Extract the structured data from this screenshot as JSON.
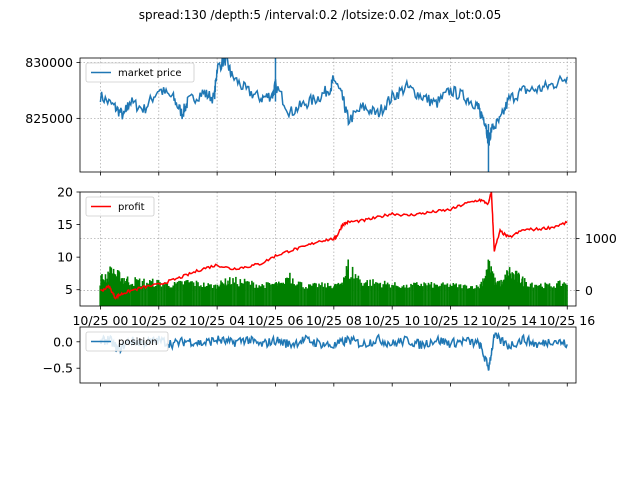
{
  "figure": {
    "title": "spread:130 /depth:5 /interval:0.2 /lotsize:0.02 /max_lot:0.05"
  },
  "colors": {
    "market_price": "#1f77b4",
    "profit": "#ff0000",
    "volume": "#008000",
    "position": "#1f77b4"
  },
  "chart_data": [
    {
      "type": "line",
      "panel": "top",
      "legend": {
        "labels": [
          "market price"
        ],
        "placement": "upper-left"
      },
      "grid": true,
      "ylim": [
        820200,
        830400
      ],
      "yticks": [
        825000,
        830000
      ],
      "ytick_labels": [
        "825000",
        "830000"
      ],
      "x_range_hours": [
        -0.7,
        16.3
      ],
      "series": [
        {
          "name": "market price",
          "x": [
            0,
            0.5,
            0.8,
            1,
            1.5,
            2,
            2.5,
            2.8,
            3,
            3.5,
            3.9,
            4,
            4.3,
            4.5,
            5,
            5.5,
            5.9,
            6,
            6.5,
            7,
            7.5,
            7.9,
            8,
            8.3,
            8.5,
            9,
            9.5,
            10,
            10.5,
            11,
            11.5,
            12,
            12.5,
            12.9,
            13,
            13.2,
            13.3,
            13.4,
            13.7,
            14,
            14.5,
            15,
            15.5,
            16
          ],
          "y": [
            827000,
            826000,
            825200,
            826500,
            825800,
            827600,
            826800,
            825400,
            826500,
            827300,
            826800,
            829500,
            830300,
            828800,
            827500,
            826800,
            827100,
            828000,
            825500,
            826300,
            826900,
            827800,
            828600,
            826800,
            824800,
            826000,
            825400,
            826900,
            827800,
            827000,
            826300,
            827500,
            826900,
            826200,
            825600,
            824700,
            822800,
            824000,
            824800,
            826700,
            827500,
            827600,
            828000,
            828700
          ]
        }
      ]
    },
    {
      "type": "line",
      "panel": "middle",
      "legend": {
        "labels": [
          "profit"
        ],
        "placement": "upper-left"
      },
      "grid": true,
      "ylim": [
        2.5,
        20
      ],
      "yticks": [
        5,
        10,
        15,
        20
      ],
      "ytick_labels": [
        "5",
        "10",
        "15",
        "20"
      ],
      "xticks": [
        0,
        2,
        4,
        6,
        8,
        10,
        12,
        14,
        16
      ],
      "xtick_labels": [
        "10/25 00",
        "10/25 02",
        "10/25 04",
        "10/25 06",
        "10/25 08",
        "10/25 10",
        "10/25 12",
        "10/25 14",
        "10/25 16"
      ],
      "series": [
        {
          "name": "profit",
          "x": [
            0,
            0.3,
            0.5,
            0.7,
            1,
            1.5,
            2,
            2.5,
            3,
            3.5,
            4,
            4.5,
            5,
            5.5,
            6,
            6.5,
            7,
            7.5,
            8,
            8.1,
            8.3,
            8.5,
            9,
            9.5,
            10,
            10.5,
            11,
            11.5,
            12,
            12.5,
            13,
            13.3,
            13.4,
            13.5,
            13.7,
            14,
            14.5,
            15,
            15.5,
            16
          ],
          "y": [
            4.8,
            5.5,
            3.8,
            4.3,
            4.8,
            5.4,
            5.8,
            6.5,
            7.3,
            8.2,
            8.8,
            8.2,
            8.5,
            9.0,
            10.2,
            11.0,
            11.6,
            12.5,
            12.8,
            13.2,
            15.0,
            15.4,
            15.6,
            16.1,
            16.7,
            16.4,
            16.7,
            17.0,
            17.3,
            18.2,
            18.8,
            18.2,
            20.0,
            11.0,
            14.0,
            13.0,
            14.2,
            14.3,
            14.6,
            15.3
          ]
        }
      ],
      "secondary_axis": {
        "type": "bar",
        "label_side": "right",
        "ylim": [
          -300,
          1900
        ],
        "yticks": [
          0,
          1000
        ],
        "ytick_labels": [
          "0",
          "1000"
        ],
        "series": [
          {
            "name": "volume",
            "x": [
              0,
              0.3,
              0.5,
              0.7,
              1,
              1.5,
              2,
              2.5,
              3,
              3.5,
              4,
              4.2,
              4.5,
              5,
              5.5,
              6,
              6.3,
              6.5,
              7,
              7.5,
              8,
              8.2,
              8.5,
              9,
              9.5,
              10,
              10.5,
              11,
              11.5,
              12,
              12.5,
              13,
              13.3,
              13.5,
              13.8,
              14,
              14.3,
              14.5,
              15,
              15.5,
              16
            ],
            "values": [
              250,
              400,
              350,
              300,
              230,
              200,
              180,
              130,
              200,
              140,
              100,
              180,
              220,
              190,
              120,
              150,
              130,
              360,
              90,
              130,
              110,
              120,
              520,
              200,
              180,
              140,
              90,
              160,
              120,
              130,
              100,
              90,
              550,
              240,
              160,
              430,
              300,
              220,
              140,
              110,
              200
            ]
          }
        ]
      }
    },
    {
      "type": "line",
      "panel": "bottom",
      "legend": {
        "labels": [
          "position"
        ],
        "placement": "upper-left"
      },
      "grid": false,
      "ylim": [
        -0.78,
        0.28
      ],
      "yticks": [
        0.0,
        -0.5
      ],
      "ytick_labels": [
        "0.0",
        "−0.5"
      ],
      "series": [
        {
          "name": "position",
          "x": [
            0,
            0.3,
            0.6,
            1,
            1.5,
            2,
            2.5,
            3,
            3.5,
            4,
            4.5,
            5,
            5.5,
            6,
            6.5,
            7,
            7.5,
            8,
            8.5,
            9,
            9.5,
            10,
            10.5,
            11,
            11.5,
            12,
            12.5,
            13,
            13.3,
            13.5,
            14,
            14.5,
            15,
            15.5,
            16
          ],
          "y": [
            0.0,
            0.05,
            -0.15,
            0.02,
            -0.02,
            0.03,
            -0.04,
            0.02,
            -0.03,
            0.04,
            -0.02,
            0.05,
            -0.06,
            0.03,
            -0.05,
            0.04,
            -0.03,
            -0.08,
            0.04,
            -0.05,
            0.05,
            -0.04,
            0.03,
            -0.06,
            0.04,
            -0.03,
            0.02,
            -0.05,
            -0.5,
            0.1,
            -0.08,
            0.05,
            -0.06,
            0.03,
            -0.05
          ]
        }
      ]
    }
  ]
}
